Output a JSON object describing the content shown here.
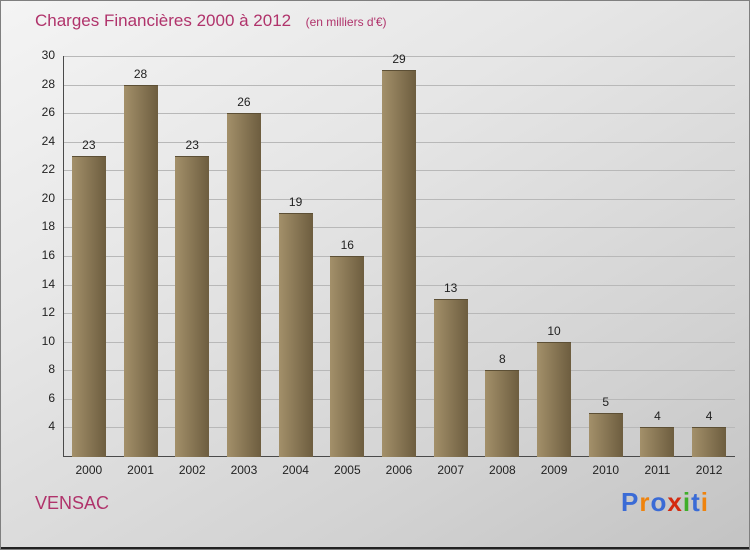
{
  "header": {
    "title": "Charges Financières 2000 à 2012",
    "subtitle": "(en milliers d'€)"
  },
  "footer": {
    "org": "VENSAC"
  },
  "logo": {
    "name": "Proxiti",
    "letters": [
      {
        "ch": "P",
        "color": "#3a6bd6"
      },
      {
        "ch": "r",
        "color": "#ef830d"
      },
      {
        "ch": "o",
        "color": "#3a6bd6"
      },
      {
        "ch": "x",
        "color": "#d42a0f"
      },
      {
        "ch": "i",
        "color": "#3fae2a"
      },
      {
        "ch": "t",
        "color": "#3a6bd6"
      },
      {
        "ch": "i",
        "color": "#ef830d"
      }
    ]
  },
  "colors": {
    "accent": "#b0336b",
    "bar_light": "#a3906a",
    "bar_dark": "#6d5d3f",
    "grid": "#b8b8b8",
    "axis": "#4a4a4a",
    "text": "#222222"
  },
  "chart_data": {
    "type": "bar",
    "title": "Charges Financières 2000 à 2012",
    "subtitle": "(en milliers d'€)",
    "categories": [
      "2000",
      "2001",
      "2002",
      "2003",
      "2004",
      "2005",
      "2006",
      "2007",
      "2008",
      "2009",
      "2010",
      "2011",
      "2012"
    ],
    "values": [
      23,
      28,
      23,
      26,
      19,
      16,
      29,
      13,
      8,
      10,
      5,
      4,
      4
    ],
    "xlabel": "",
    "ylabel": "",
    "ylim": [
      2,
      30
    ],
    "yticks": [
      4,
      6,
      8,
      10,
      12,
      14,
      16,
      18,
      20,
      22,
      24,
      26,
      28,
      30
    ],
    "grid": true,
    "legend": false,
    "value_labels": true
  }
}
